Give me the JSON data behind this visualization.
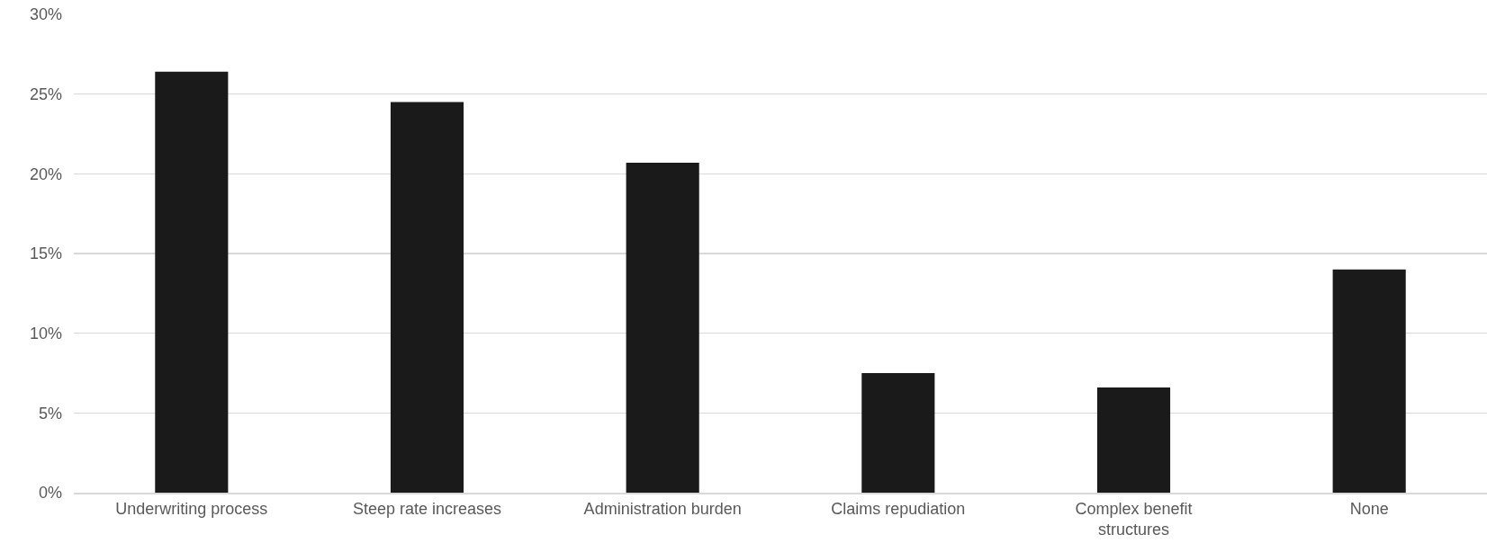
{
  "chart_data": {
    "type": "bar",
    "categories": [
      "Underwriting process",
      "Steep rate increases",
      "Administration burden",
      "Claims repudiation",
      "Complex benefit structures",
      "None"
    ],
    "values": [
      26.4,
      24.5,
      20.7,
      7.5,
      6.6,
      14.0
    ],
    "color": "#1a1a1a",
    "ylim": [
      0,
      30
    ],
    "yticks": [
      {
        "value": 0,
        "label": "0%"
      },
      {
        "value": 5,
        "label": "5%"
      },
      {
        "value": 10,
        "label": "10%"
      },
      {
        "value": 15,
        "label": "15%"
      },
      {
        "value": 20,
        "label": "20%"
      },
      {
        "value": 25,
        "label": "25%"
      },
      {
        "value": 30,
        "label": "30%"
      }
    ],
    "grid": "y"
  }
}
